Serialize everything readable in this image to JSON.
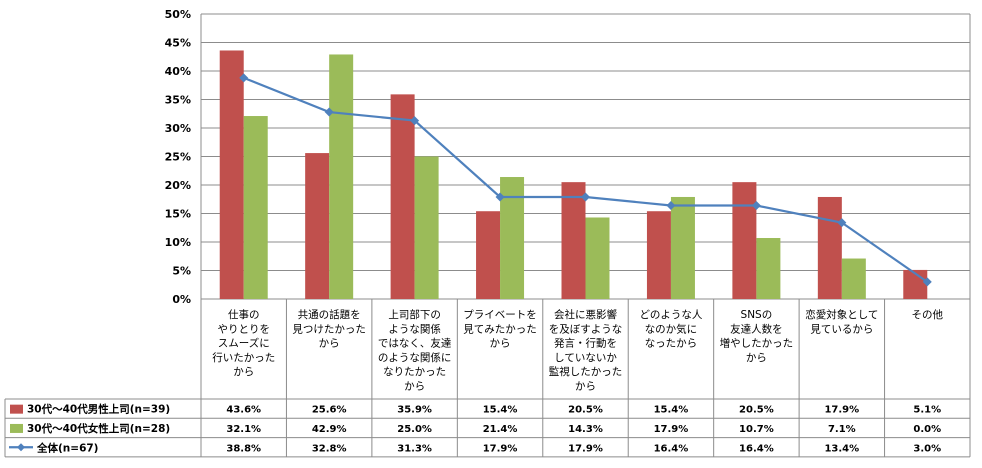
{
  "chart_data": {
    "type": "bar",
    "title": "",
    "xlabel": "",
    "ylabel": "",
    "ylim": [
      0,
      50
    ],
    "yticks": [
      "0%",
      "5%",
      "10%",
      "15%",
      "20%",
      "25%",
      "30%",
      "35%",
      "40%",
      "45%",
      "50%"
    ],
    "grid": true,
    "legend": "table-left",
    "categories": [
      [
        "仕事の",
        "やりとりを",
        "スムーズに",
        "行いたかった",
        "から"
      ],
      [
        "共通の話題を",
        "見つけたかった",
        "から"
      ],
      [
        "上司部下の",
        "ような関係",
        "ではなく、友達",
        "のような関係に",
        "なりたかった",
        "から"
      ],
      [
        "プライベートを",
        "見てみたかった",
        "から"
      ],
      [
        "会社に悪影響",
        "を及ぼすような",
        "発言・行動を",
        "していないか",
        "監視したかった",
        "から"
      ],
      [
        "どのような人",
        "なのか気に",
        "なったから"
      ],
      [
        "SNSの",
        "友達人数を",
        "増やしたかった",
        "から"
      ],
      [
        "恋愛対象として",
        "見ているから"
      ],
      [
        "その他"
      ]
    ],
    "series": [
      {
        "name": "30代～40代男性上司(n=39)",
        "kind": "bar",
        "color": "#c0504d",
        "values": [
          43.6,
          25.6,
          35.9,
          15.4,
          20.5,
          15.4,
          20.5,
          17.9,
          5.1
        ],
        "labels": [
          "43.6%",
          "25.6%",
          "35.9%",
          "15.4%",
          "20.5%",
          "15.4%",
          "20.5%",
          "17.9%",
          "5.1%"
        ]
      },
      {
        "name": "30代～40代女性上司(n=28)",
        "kind": "bar",
        "color": "#9bbb59",
        "values": [
          32.1,
          42.9,
          25.0,
          21.4,
          14.3,
          17.9,
          10.7,
          7.1,
          0.0
        ],
        "labels": [
          "32.1%",
          "42.9%",
          "25.0%",
          "21.4%",
          "14.3%",
          "17.9%",
          "10.7%",
          "7.1%",
          "0.0%"
        ]
      },
      {
        "name": "全体(n=67)",
        "kind": "line",
        "color": "#4f81bd",
        "values": [
          38.8,
          32.8,
          31.3,
          17.9,
          17.9,
          16.4,
          16.4,
          13.4,
          3.0
        ],
        "labels": [
          "38.8%",
          "32.8%",
          "31.3%",
          "17.9%",
          "17.9%",
          "16.4%",
          "16.4%",
          "13.4%",
          "3.0%"
        ]
      }
    ]
  }
}
